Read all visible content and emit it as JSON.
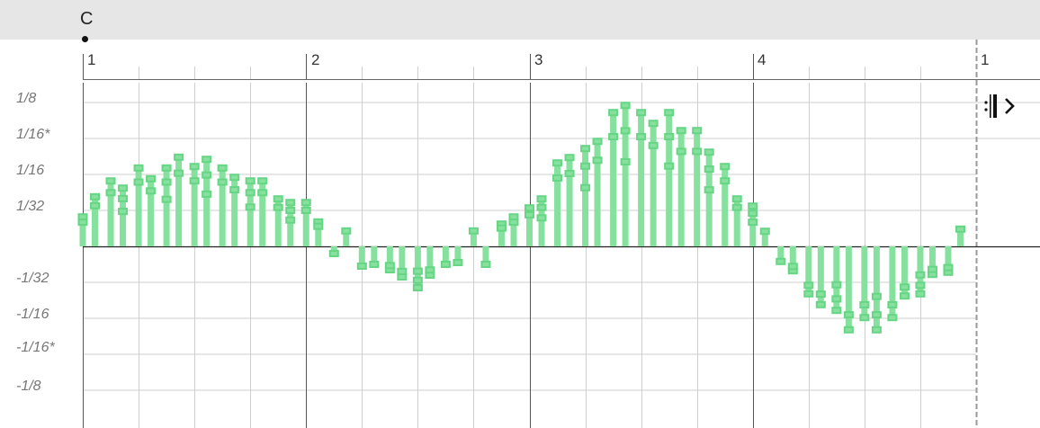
{
  "header": {
    "chord_label": "C"
  },
  "ruler": {
    "measures": [
      "1",
      "2",
      "3",
      "4",
      "1"
    ]
  },
  "editor": {
    "y_axis_labels": [
      "1/8",
      "1/16*",
      "1/16",
      "1/32",
      "-1/32",
      "-1/16",
      "-1/16*",
      "-1/8"
    ],
    "step": "1/16",
    "stem_color": "#86e19e",
    "marker_color": "#66d584",
    "values": [
      0.82,
      1.38,
      1.82,
      1.62,
      2.18,
      1.88,
      2.18,
      2.48,
      2.22,
      2.42,
      2.18,
      1.92,
      1.82,
      1.82,
      1.32,
      1.22,
      1.22,
      0.68,
      -0.2,
      0.43,
      -0.55,
      -0.5,
      -0.65,
      -0.85,
      -1.15,
      -0.8,
      -0.5,
      -0.45,
      0.43,
      -0.5,
      0.62,
      0.82,
      1.07,
      1.32,
      2.32,
      2.47,
      2.72,
      2.92,
      3.72,
      3.92,
      3.72,
      3.42,
      3.72,
      3.22,
      3.22,
      2.62,
      2.22,
      1.32,
      1.12,
      0.42,
      -0.42,
      -0.68,
      -1.32,
      -1.62,
      -1.78,
      -2.32,
      -1.98,
      -2.32,
      -1.98,
      -1.38,
      -1.32,
      -0.78,
      -0.72,
      0.48
    ]
  },
  "end_marker": {
    "icon": "repeat-end-chevron-icon"
  }
}
